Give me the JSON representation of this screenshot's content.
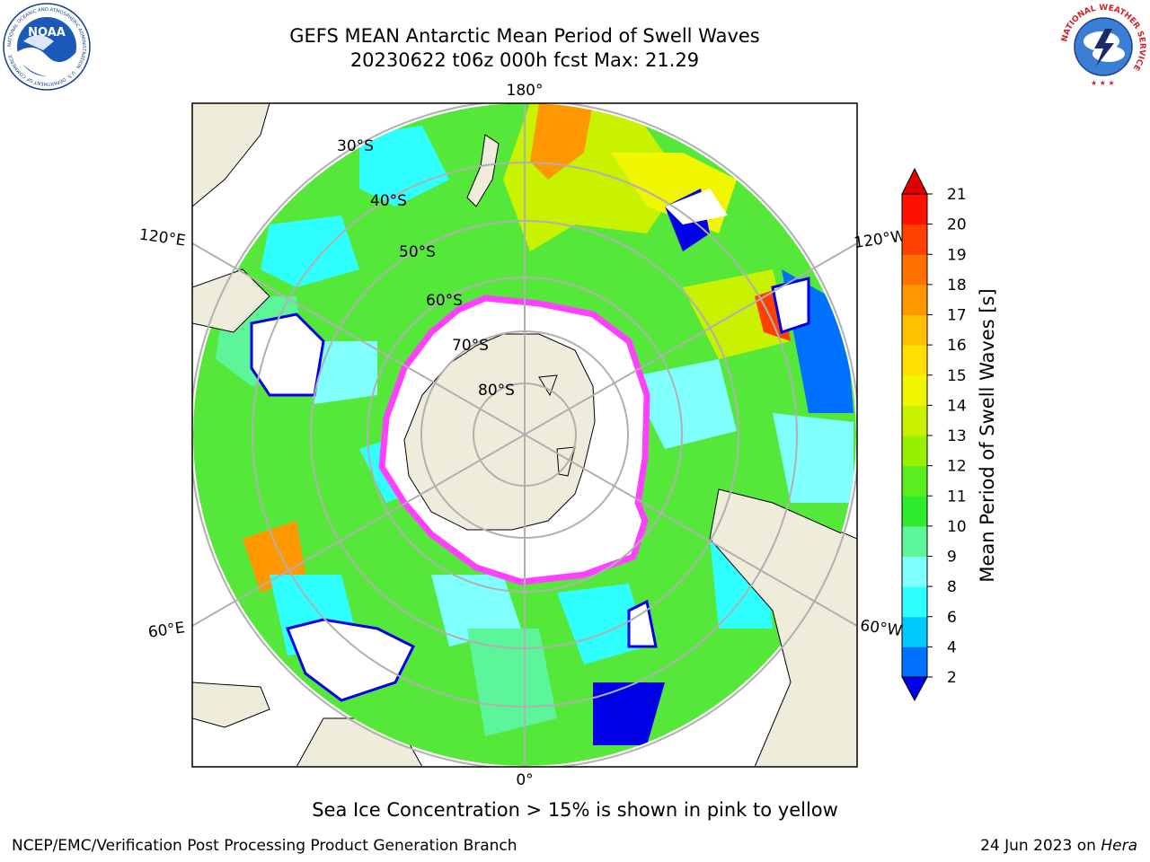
{
  "header": {
    "title_line1": "GEFS MEAN Antarctic Mean Period of Swell Waves",
    "title_line2": "20230622 t06z 000h fcst   Max: 21.29"
  },
  "logos": {
    "noaa_text": "NOAA",
    "noaa_ring_text": "NATIONAL OCEANIC AND ATMOSPHERIC ADMINISTRATION · U.S. DEPARTMENT OF COMMERCE",
    "nws_ring_text": "NATIONAL WEATHER SERVICE"
  },
  "map": {
    "projection": "south polar stereographic",
    "longitude_labels": [
      "180°",
      "120°E",
      "120°W",
      "60°E",
      "60°W",
      "0°"
    ],
    "latitude_labels": [
      "30°S",
      "40°S",
      "50°S",
      "60°S",
      "70°S",
      "80°S"
    ],
    "colors": {
      "land": "#efecdc",
      "ocean_mid": "#55e83a",
      "ice": "#ffffff",
      "ice_edge": "#ff40ff",
      "grid": "#b0b0b0"
    }
  },
  "colorbar": {
    "label": "Mean Period of Swell Waves [s]",
    "ticks": [
      "2",
      "4",
      "6",
      "8",
      "9",
      "10",
      "11",
      "12",
      "13",
      "14",
      "15",
      "16",
      "17",
      "18",
      "19",
      "20",
      "21"
    ],
    "colors": [
      "#0000e8",
      "#0070ff",
      "#00c8ff",
      "#30ffff",
      "#80ffff",
      "#5cf59a",
      "#2eeb2e",
      "#5aee20",
      "#96f000",
      "#c8f200",
      "#f0f500",
      "#ffe000",
      "#ffc000",
      "#ff9800",
      "#ff7000",
      "#ff4000",
      "#ff1000",
      "#e00000"
    ]
  },
  "caption": "Sea Ice Concentration > 15% is shown in pink to yellow",
  "footer": {
    "left": "NCEP/EMC/Verification Post Processing Product Generation Branch",
    "right_prefix": "24 Jun 2023 on ",
    "right_host": "Hera"
  }
}
